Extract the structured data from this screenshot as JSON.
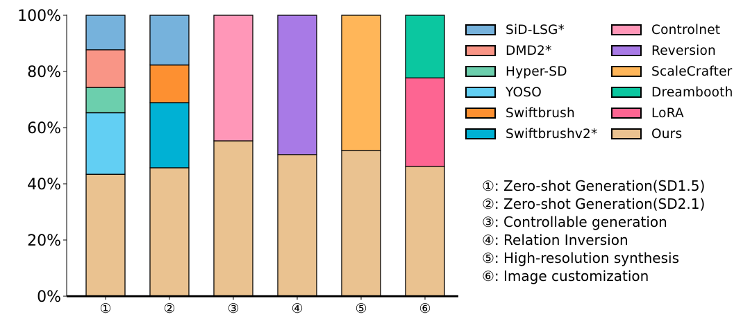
{
  "chart_data": {
    "type": "bar",
    "stacked": true,
    "categories": [
      "①",
      "②",
      "③",
      "④",
      "⑤",
      "⑥"
    ],
    "ylim": [
      0,
      100
    ],
    "yticks": [
      "0%",
      "20%",
      "40%",
      "60%",
      "80%",
      "100%"
    ],
    "grid": false,
    "legend_position": "right",
    "stacks": [
      [
        {
          "name": "Ours",
          "value": 43.4,
          "color": "#eac290"
        },
        {
          "name": "YOSO",
          "value": 21.9,
          "color": "#62cff3"
        },
        {
          "name": "Hyper-SD",
          "value": 9.0,
          "color": "#6ccfad"
        },
        {
          "name": "DMD2*",
          "value": 13.4,
          "color": "#f99586"
        },
        {
          "name": "SiD-LSG*",
          "value": 12.3,
          "color": "#76b2dc"
        }
      ],
      [
        {
          "name": "Ours",
          "value": 45.7,
          "color": "#eac290"
        },
        {
          "name": "Swiftbrushv2*",
          "value": 23.2,
          "color": "#00b1d4"
        },
        {
          "name": "Swiftbrush",
          "value": 13.4,
          "color": "#fd9031"
        },
        {
          "name": "SiD-LSG*",
          "value": 17.7,
          "color": "#76b2dc"
        }
      ],
      [
        {
          "name": "Ours",
          "value": 55.3,
          "color": "#eac290"
        },
        {
          "name": "Controlnet",
          "value": 44.7,
          "color": "#ff97b8"
        }
      ],
      [
        {
          "name": "Ours",
          "value": 50.4,
          "color": "#eac290"
        },
        {
          "name": "Reversion",
          "value": 49.6,
          "color": "#a87ae6"
        }
      ],
      [
        {
          "name": "Ours",
          "value": 51.9,
          "color": "#eac290"
        },
        {
          "name": "ScaleCrafter",
          "value": 48.1,
          "color": "#ffb659"
        }
      ],
      [
        {
          "name": "Ours",
          "value": 46.2,
          "color": "#eac290"
        },
        {
          "name": "LoRA",
          "value": 31.5,
          "color": "#fd6592"
        },
        {
          "name": "Dreambooth",
          "value": 22.3,
          "color": "#0bc7a0"
        }
      ]
    ]
  },
  "legend": [
    {
      "label": "SiD-LSG*",
      "color": "#76b2dc"
    },
    {
      "label": "DMD2*",
      "color": "#f99586"
    },
    {
      "label": "Hyper-SD",
      "color": "#6ccfad"
    },
    {
      "label": "YOSO",
      "color": "#62cff3"
    },
    {
      "label": "Swiftbrush",
      "color": "#fd9031"
    },
    {
      "label": "Swiftbrushv2*",
      "color": "#00b1d4"
    },
    {
      "label": "Controlnet",
      "color": "#ff97b8"
    },
    {
      "label": "Reversion",
      "color": "#a87ae6"
    },
    {
      "label": "ScaleCrafter",
      "color": "#ffb659"
    },
    {
      "label": "Dreambooth",
      "color": "#0bc7a0"
    },
    {
      "label": "LoRA",
      "color": "#fd6592"
    },
    {
      "label": "Ours",
      "color": "#eac290"
    }
  ],
  "notes": [
    "①: Zero-shot Generation(SD1.5)",
    "②: Zero-shot Generation(SD2.1)",
    "③: Controllable generation",
    "④: Relation Inversion",
    "⑤: High-resolution synthesis",
    "⑥: Image customization"
  ]
}
